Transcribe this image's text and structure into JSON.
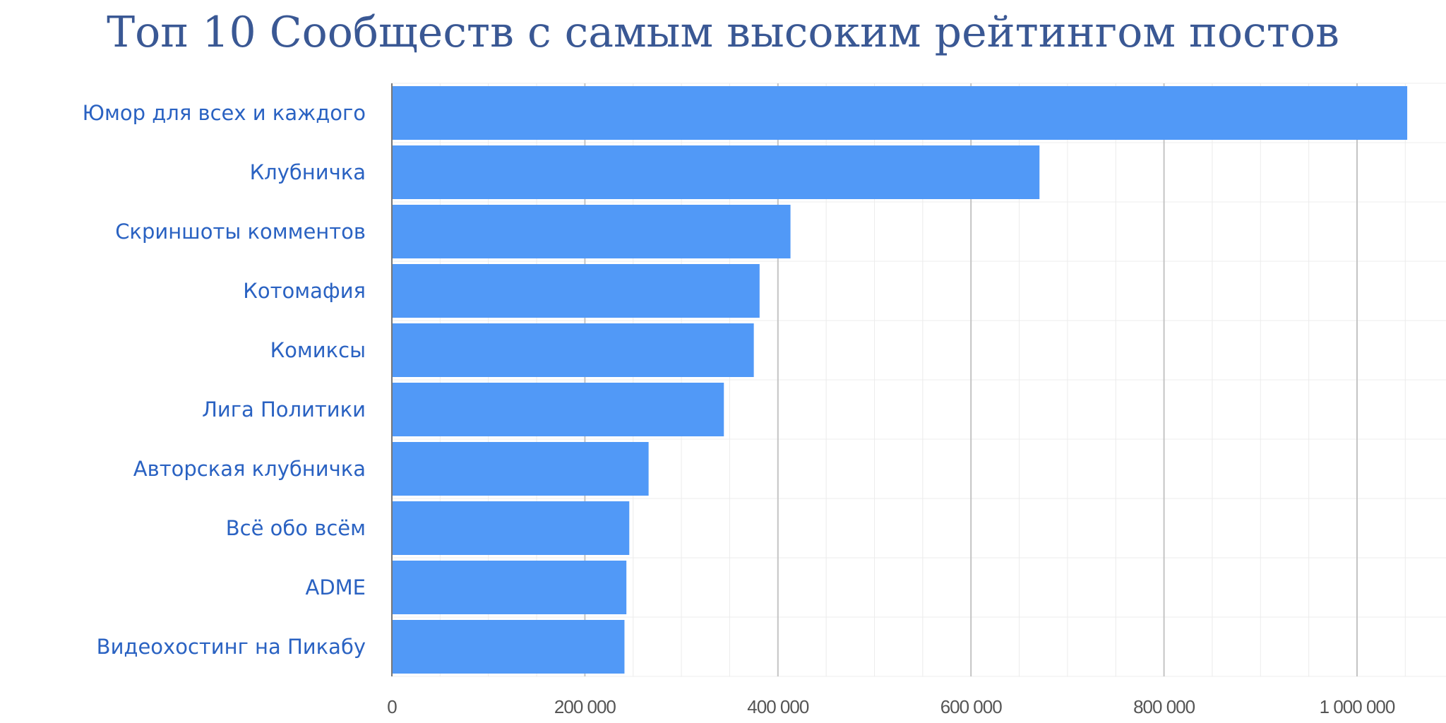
{
  "chart_data": {
    "type": "bar",
    "orientation": "horizontal",
    "title": "Топ 10 Сообществ с самым высоким рейтингом постов",
    "categories": [
      "Юмор для всех и каждого",
      "Клубничка",
      "Скриншоты комментов",
      "Котомафия",
      "Комиксы",
      "Лига Политики",
      "Авторская клубничка",
      "Всё обо всём",
      "ADME",
      "Видеохостинг на Пикабу"
    ],
    "values": [
      1052000,
      671000,
      413000,
      381000,
      375000,
      344000,
      266000,
      246000,
      243000,
      241000
    ],
    "xlim": [
      0,
      1100000
    ],
    "xticks": [
      0,
      200000,
      400000,
      600000,
      800000,
      1000000
    ],
    "xtick_labels": [
      "0",
      "200 000",
      "400 000",
      "600 000",
      "800 000",
      "1 000 000"
    ],
    "grid": true,
    "legend": "none",
    "bar_color": "#5199f7",
    "label_color": "#2a62c2"
  }
}
